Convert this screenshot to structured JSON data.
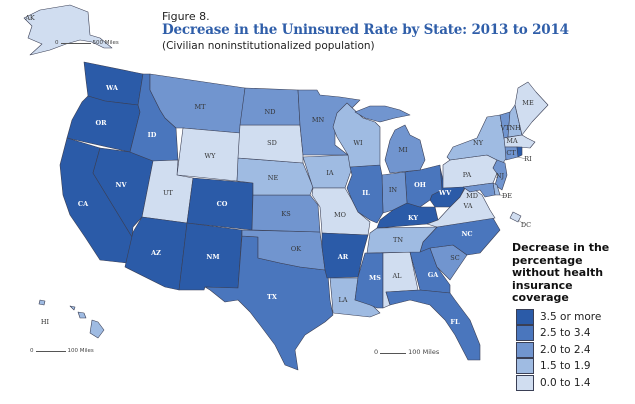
{
  "figure_label": "Figure 8.",
  "title": "Decrease in the Uninsured Rate by State: 2013 to 2014",
  "subtitle": "(Civilian noninstitutionalized population)",
  "legend": {
    "title": "Decrease in the percentage without health insurance coverage",
    "classes": [
      {
        "label": "3.5 or more",
        "color": "#2b5ba8"
      },
      {
        "label": "2.5 to 3.4",
        "color": "#4a76bd"
      },
      {
        "label": "2.0 to 2.4",
        "color": "#7195cf"
      },
      {
        "label": "1.5 to 1.9",
        "color": "#9fbbe2"
      },
      {
        "label": "0.0 to 1.4",
        "color": "#d0ddf0"
      }
    ]
  },
  "scale_bars": {
    "alaska": {
      "zero": "0",
      "label": "500 Miles"
    },
    "hawaii": {
      "zero": "0",
      "label": "100 Miles"
    },
    "conus": {
      "zero": "0",
      "label": "100 Miles"
    }
  },
  "states": [
    {
      "abbr": "WA",
      "class": 0
    },
    {
      "abbr": "OR",
      "class": 0
    },
    {
      "abbr": "CA",
      "class": 0
    },
    {
      "abbr": "NV",
      "class": 0
    },
    {
      "abbr": "ID",
      "class": 1
    },
    {
      "abbr": "MT",
      "class": 2
    },
    {
      "abbr": "WY",
      "class": 4
    },
    {
      "abbr": "UT",
      "class": 4
    },
    {
      "abbr": "CO",
      "class": 0
    },
    {
      "abbr": "AZ",
      "class": 0
    },
    {
      "abbr": "NM",
      "class": 0
    },
    {
      "abbr": "ND",
      "class": 2
    },
    {
      "abbr": "SD",
      "class": 4
    },
    {
      "abbr": "NE",
      "class": 3
    },
    {
      "abbr": "KS",
      "class": 2
    },
    {
      "abbr": "OK",
      "class": 2
    },
    {
      "abbr": "TX",
      "class": 1
    },
    {
      "abbr": "MN",
      "class": 2
    },
    {
      "abbr": "IA",
      "class": 3
    },
    {
      "abbr": "MO",
      "class": 4
    },
    {
      "abbr": "AR",
      "class": 0
    },
    {
      "abbr": "LA",
      "class": 3
    },
    {
      "abbr": "WI",
      "class": 3
    },
    {
      "abbr": "IL",
      "class": 1
    },
    {
      "abbr": "MI",
      "class": 2
    },
    {
      "abbr": "IN",
      "class": 2
    },
    {
      "abbr": "OH",
      "class": 1
    },
    {
      "abbr": "KY",
      "class": 0
    },
    {
      "abbr": "TN",
      "class": 3
    },
    {
      "abbr": "MS",
      "class": 1
    },
    {
      "abbr": "AL",
      "class": 4
    },
    {
      "abbr": "GA",
      "class": 1
    },
    {
      "abbr": "FL",
      "class": 1
    },
    {
      "abbr": "SC",
      "class": 2
    },
    {
      "abbr": "NC",
      "class": 1
    },
    {
      "abbr": "VA",
      "class": 4
    },
    {
      "abbr": "WV",
      "class": 0
    },
    {
      "abbr": "PA",
      "class": 4
    },
    {
      "abbr": "NY",
      "class": 3
    },
    {
      "abbr": "VT",
      "class": 2
    },
    {
      "abbr": "NH",
      "class": 3
    },
    {
      "abbr": "ME",
      "class": 4
    },
    {
      "abbr": "MA",
      "class": 4
    },
    {
      "abbr": "CT",
      "class": 2
    },
    {
      "abbr": "RI",
      "class": 0
    },
    {
      "abbr": "NJ",
      "class": 2
    },
    {
      "abbr": "DE",
      "class": 3
    },
    {
      "abbr": "MD",
      "class": 2
    },
    {
      "abbr": "DC",
      "class": 4
    },
    {
      "abbr": "AK",
      "class": 4
    },
    {
      "abbr": "HI",
      "class": 3
    }
  ]
}
